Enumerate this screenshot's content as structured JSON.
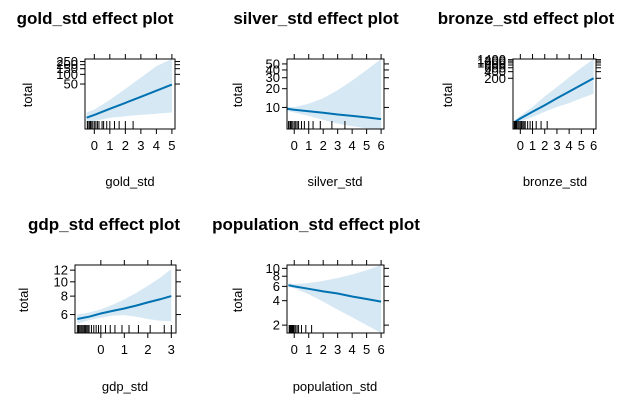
{
  "page": {
    "background": "#ffffff"
  },
  "colors": {
    "band": "#d6e8f4",
    "line": "#0072b2",
    "frame": "#000000",
    "rug": "#000000"
  },
  "chart_data": [
    {
      "type": "line",
      "title": "gold_std effect plot",
      "xlabel": "gold_std",
      "ylabel": "total",
      "xlim": [
        -0.6,
        5.2
      ],
      "ylim": [
        2,
        300
      ],
      "yscale": "log",
      "xticks": [
        0,
        1,
        2,
        3,
        4,
        5
      ],
      "xtick_labels": [
        "0",
        "1",
        "2",
        "3",
        "4",
        "5"
      ],
      "yticks": [
        50,
        100,
        150,
        200,
        250
      ],
      "ytick_labels": [
        "50",
        "100",
        "150",
        "200",
        "250"
      ],
      "x": [
        -0.5,
        0,
        1,
        2,
        3,
        4,
        5
      ],
      "fit": [
        4.5,
        5.5,
        8.5,
        13,
        20,
        31,
        48
      ],
      "lower": [
        3,
        3.5,
        4.5,
        5,
        5.5,
        6,
        6.5
      ],
      "upper": [
        6.5,
        8,
        16,
        35,
        80,
        180,
        300
      ],
      "rug": [
        -0.45,
        -0.4,
        -0.3,
        -0.25,
        -0.2,
        -0.1,
        0,
        0.1,
        0.2,
        0.3,
        0.5,
        0.6,
        0.8,
        1.0,
        1.3,
        1.6,
        2.0,
        2.5
      ]
    },
    {
      "type": "line",
      "title": "silver_std effect plot",
      "xlabel": "silver_std",
      "ylabel": "total",
      "xlim": [
        -0.5,
        6.2
      ],
      "ylim": [
        4.5,
        60
      ],
      "yscale": "log",
      "xticks": [
        0,
        1,
        2,
        3,
        4,
        5,
        6
      ],
      "xtick_labels": [
        "0",
        "1",
        "2",
        "3",
        "4",
        "5",
        "6"
      ],
      "yticks": [
        10,
        20,
        30,
        40,
        50
      ],
      "ytick_labels": [
        "10",
        "20",
        "30",
        "40",
        "50"
      ],
      "x": [
        -0.5,
        0,
        1,
        2,
        3,
        4,
        5,
        6
      ],
      "fit": [
        9.5,
        9.2,
        8.7,
        8.2,
        7.7,
        7.3,
        6.9,
        6.5
      ],
      "lower": [
        8.8,
        8.3,
        7.3,
        6.3,
        5.5,
        5.0,
        4.6,
        4.4
      ],
      "upper": [
        10.3,
        10.1,
        11.5,
        14,
        19,
        27,
        40,
        60
      ],
      "rug": [
        -0.4,
        -0.3,
        -0.25,
        -0.2,
        -0.1,
        0,
        0.1,
        0.2,
        0.3,
        0.5,
        0.7,
        1.0,
        1.3,
        1.8,
        2.6,
        3.5
      ]
    },
    {
      "type": "line",
      "title": "bronze_std effect plot",
      "xlabel": "bronze_std",
      "ylabel": "total",
      "xlim": [
        -0.6,
        6.2
      ],
      "ylim": [
        1,
        1500
      ],
      "yscale": "log",
      "xticks": [
        0,
        1,
        2,
        3,
        4,
        5,
        6
      ],
      "xtick_labels": [
        "0",
        "1",
        "2",
        "3",
        "4",
        "5",
        "6"
      ],
      "yticks": [
        200,
        400,
        600,
        800,
        1000,
        1200,
        1400
      ],
      "ytick_labels": [
        "200",
        "400",
        "600",
        "800",
        "1000",
        "1200",
        "1400"
      ],
      "x": [
        -0.5,
        0,
        1,
        2,
        3,
        4,
        5,
        6
      ],
      "fit": [
        2,
        3,
        6,
        12,
        25,
        50,
        100,
        200
      ],
      "lower": [
        1.5,
        2.2,
        3.5,
        6,
        10,
        15,
        25,
        40
      ],
      "upper": [
        2.5,
        4,
        10,
        30,
        80,
        220,
        600,
        1500
      ],
      "rug": [
        -0.5,
        -0.45,
        -0.4,
        -0.35,
        -0.3,
        -0.2,
        -0.1,
        0,
        0.1,
        0.2,
        0.3,
        0.4,
        0.6,
        0.8,
        1.0,
        1.3,
        1.7,
        2.2
      ]
    },
    {
      "type": "line",
      "title": "gdp_std effect plot",
      "xlabel": "gdp_std",
      "ylabel": "total",
      "xlim": [
        -1.1,
        3.2
      ],
      "ylim": [
        4.5,
        13
      ],
      "yscale": "log",
      "xticks": [
        0,
        1,
        2,
        3
      ],
      "xtick_labels": [
        "0",
        "1",
        "2",
        "3"
      ],
      "yticks": [
        6,
        8,
        10,
        12
      ],
      "ytick_labels": [
        "6",
        "8",
        "10",
        "12"
      ],
      "x": [
        -1.0,
        -0.5,
        0,
        0.5,
        1,
        1.5,
        2,
        2.5,
        3
      ],
      "fit": [
        5.6,
        5.8,
        6.1,
        6.35,
        6.6,
        6.9,
        7.25,
        7.6,
        8.0
      ],
      "lower": [
        5.2,
        5.5,
        5.7,
        5.9,
        5.95,
        5.8,
        5.6,
        5.45,
        5.4
      ],
      "upper": [
        6.0,
        6.2,
        6.5,
        7.0,
        7.6,
        8.4,
        9.4,
        10.6,
        12.2
      ],
      "rug": [
        -1.0,
        -0.95,
        -0.9,
        -0.85,
        -0.8,
        -0.75,
        -0.7,
        -0.65,
        -0.6,
        -0.55,
        -0.5,
        -0.4,
        -0.3,
        -0.2,
        -0.1,
        0,
        0.2,
        0.4,
        0.6,
        0.9,
        1.2,
        1.6,
        2.1,
        2.7,
        3.0
      ]
    },
    {
      "type": "line",
      "title": "population_std effect plot",
      "xlabel": "population_std",
      "ylabel": "total",
      "xlim": [
        -0.5,
        6.2
      ],
      "ylim": [
        1.6,
        11
      ],
      "yscale": "log",
      "xticks": [
        0,
        1,
        2,
        3,
        4,
        5,
        6
      ],
      "xtick_labels": [
        "0",
        "1",
        "2",
        "3",
        "4",
        "5",
        "6"
      ],
      "yticks": [
        2,
        4,
        6,
        8,
        10
      ],
      "ytick_labels": [
        "2",
        "4",
        "6",
        "8",
        "10"
      ],
      "x": [
        -0.4,
        0,
        1,
        2,
        3,
        4,
        5,
        6
      ],
      "fit": [
        6.2,
        6.0,
        5.6,
        5.2,
        4.9,
        4.5,
        4.2,
        3.9
      ],
      "lower": [
        5.9,
        5.7,
        4.8,
        3.9,
        3.1,
        2.5,
        2.0,
        1.6
      ],
      "upper": [
        6.6,
        6.4,
        6.6,
        7.0,
        7.6,
        8.4,
        9.5,
        11.0
      ],
      "rug": [
        -0.35,
        -0.3,
        -0.25,
        -0.2,
        -0.15,
        -0.1,
        -0.05,
        0,
        0.1,
        0.2,
        0.3,
        0.5,
        0.8,
        1.2
      ]
    }
  ]
}
